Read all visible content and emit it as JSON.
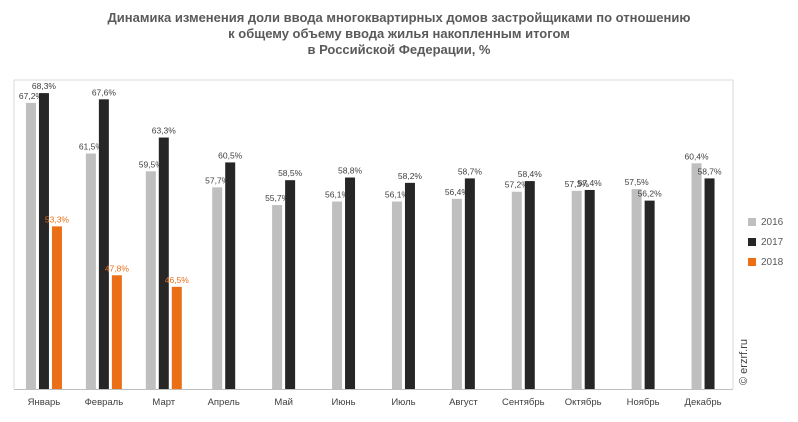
{
  "colors": {
    "s2016": "#bfbfbf",
    "s2017": "#262626",
    "s2018": "#ea6f17",
    "grid": "#d9d9d9",
    "axis": "#bfbfbf",
    "label": "#404040"
  },
  "watermark": "© erzrf.ru",
  "chart_data": {
    "type": "bar",
    "title_lines": [
      "Динамика изменения доли ввода многоквартирных домов застройщиками по отношению",
      "к общему объему ввода жилья накопленным итогом",
      "в Российской Федерации, %"
    ],
    "categories": [
      "Январь",
      "Февраль",
      "Март",
      "Апрель",
      "Май",
      "Июнь",
      "Июль",
      "Август",
      "Сентябрь",
      "Октябрь",
      "Ноябрь",
      "Декабрь"
    ],
    "series": [
      {
        "name": "2016",
        "values": [
          67.2,
          61.5,
          59.5,
          57.7,
          55.7,
          56.1,
          56.1,
          56.4,
          57.2,
          57.3,
          57.5,
          60.4
        ],
        "labels": [
          "67,2%",
          "61,5%",
          "59,5%",
          "57,7%",
          "55,7%",
          "56,1%",
          "56,1%",
          "56,4%",
          "57,2%",
          "57,3%",
          "57,5%",
          "60,4%"
        ]
      },
      {
        "name": "2017",
        "values": [
          68.3,
          67.6,
          63.3,
          60.5,
          58.5,
          58.8,
          58.2,
          58.7,
          58.4,
          57.4,
          56.2,
          58.7
        ],
        "labels": [
          "68,3%",
          "67,6%",
          "63,3%",
          "60,5%",
          "58,5%",
          "58,8%",
          "58,2%",
          "58,7%",
          "58,4%",
          "57,4%",
          "56,2%",
          "58,7%"
        ]
      },
      {
        "name": "2018",
        "values": [
          53.3,
          47.8,
          46.5,
          null,
          null,
          null,
          null,
          null,
          null,
          null,
          null,
          null
        ],
        "labels": [
          "53,3%",
          "47,8%",
          "46,5%",
          "",
          "",
          "",
          "",
          "",
          "",
          "",
          "",
          ""
        ]
      }
    ],
    "ylim": [
      35,
      70
    ],
    "grid": false,
    "legend_position": "right"
  }
}
